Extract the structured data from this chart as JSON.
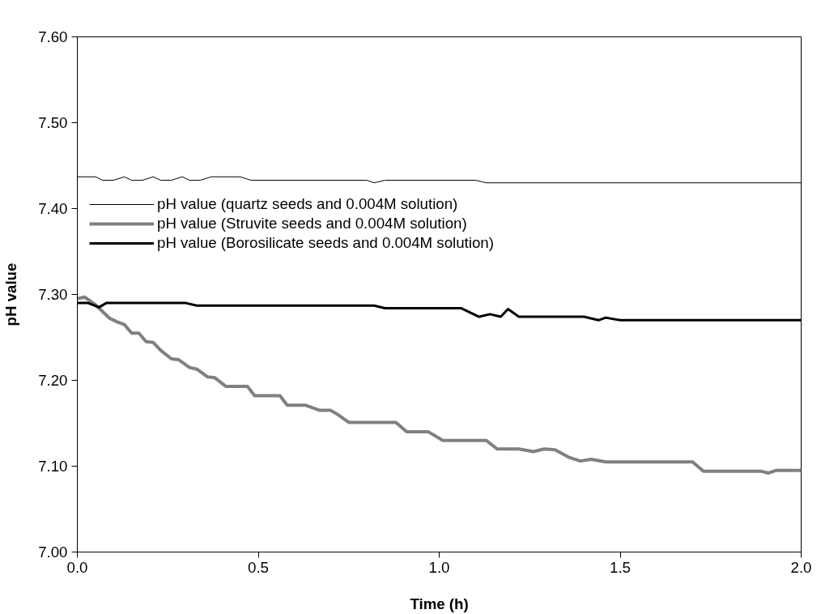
{
  "chart_data": {
    "type": "line",
    "xlabel": "Time (h)",
    "ylabel": "pH value",
    "xlim": [
      0,
      2.0
    ],
    "xticks": [
      {
        "value": 0,
        "label": "0.0"
      },
      0.5,
      {
        "value": 1,
        "label": "1.0"
      },
      1.5,
      {
        "value": 2,
        "label": "2.0"
      }
    ],
    "ylim": [
      7.0,
      7.6
    ],
    "yticks": [
      {
        "value": 7.0,
        "label": "7.00"
      },
      {
        "value": 7.1,
        "label": "7.10"
      },
      {
        "value": 7.2,
        "label": "7.20"
      },
      {
        "value": 7.3,
        "label": "7.30"
      },
      {
        "value": 7.4,
        "label": "7.40"
      },
      {
        "value": 7.5,
        "label": "7.50"
      },
      {
        "value": 7.6,
        "label": "7.60"
      }
    ],
    "grid": false,
    "legend": "top left",
    "marker": "none",
    "line_style": "solid",
    "series": [
      {
        "name": "pH value (quartz seeds and 0.004M solution)",
        "color": "#000000",
        "x": [
          0,
          0.05,
          0.07,
          0.1,
          0.13,
          0.15,
          0.18,
          0.21,
          0.23,
          0.26,
          0.29,
          0.31,
          0.34,
          0.37,
          0.45,
          0.48,
          0.8,
          0.82,
          0.85,
          1.1,
          1.13,
          2.0
        ],
        "values": [
          7.437,
          7.437,
          7.433,
          7.433,
          7.437,
          7.433,
          7.433,
          7.437,
          7.433,
          7.433,
          7.437,
          7.433,
          7.433,
          7.437,
          7.437,
          7.433,
          7.433,
          7.43,
          7.433,
          7.433,
          7.43,
          7.43
        ]
      },
      {
        "name": "pH value (Struvite seeds and 0.004M solution)",
        "color": "#808080",
        "x": [
          0,
          0.02,
          0.05,
          0.07,
          0.09,
          0.11,
          0.13,
          0.15,
          0.17,
          0.19,
          0.21,
          0.23,
          0.26,
          0.28,
          0.31,
          0.33,
          0.36,
          0.38,
          0.41,
          0.47,
          0.49,
          0.56,
          0.58,
          0.63,
          0.67,
          0.7,
          0.72,
          0.75,
          0.88,
          0.91,
          0.97,
          1.01,
          1.13,
          1.16,
          1.22,
          1.26,
          1.29,
          1.32,
          1.36,
          1.39,
          1.42,
          1.46,
          1.7,
          1.73,
          1.89,
          1.91,
          1.93,
          2.0
        ],
        "values": [
          7.295,
          7.297,
          7.288,
          7.28,
          7.272,
          7.268,
          7.265,
          7.255,
          7.255,
          7.245,
          7.244,
          7.235,
          7.225,
          7.224,
          7.215,
          7.213,
          7.204,
          7.203,
          7.193,
          7.193,
          7.182,
          7.182,
          7.171,
          7.171,
          7.165,
          7.165,
          7.16,
          7.151,
          7.151,
          7.14,
          7.14,
          7.13,
          7.13,
          7.12,
          7.12,
          7.117,
          7.12,
          7.119,
          7.11,
          7.106,
          7.108,
          7.105,
          7.105,
          7.094,
          7.094,
          7.092,
          7.095,
          7.095
        ]
      },
      {
        "name": "pH value (Borosilicate seeds and 0.004M solution)",
        "color": "#000000",
        "x": [
          0,
          0.03,
          0.06,
          0.08,
          0.3,
          0.33,
          0.82,
          0.85,
          1.06,
          1.11,
          1.14,
          1.17,
          1.19,
          1.22,
          1.4,
          1.44,
          1.46,
          1.5,
          2.0
        ],
        "values": [
          7.29,
          7.29,
          7.285,
          7.29,
          7.29,
          7.287,
          7.287,
          7.284,
          7.284,
          7.274,
          7.277,
          7.274,
          7.283,
          7.274,
          7.274,
          7.27,
          7.273,
          7.27,
          7.27
        ]
      }
    ]
  }
}
